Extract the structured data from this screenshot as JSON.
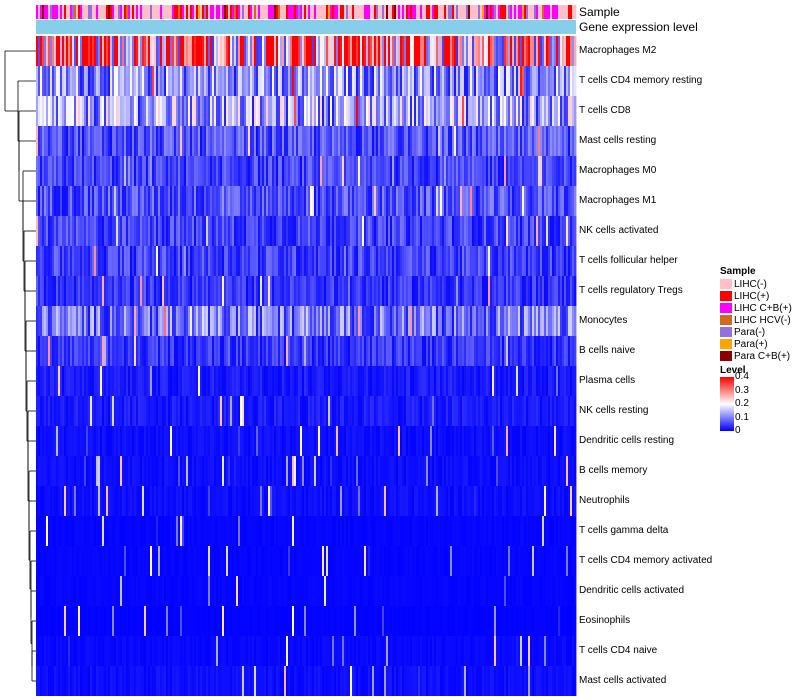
{
  "chart_data": {
    "type": "heatmap",
    "annotations": {
      "sample_track_label": "Sample",
      "expression_track_label": "Gene expression level"
    },
    "rows": [
      {
        "name": "Macrophages M2",
        "mean": 0.28
      },
      {
        "name": "T cells CD4 memory resting",
        "mean": 0.11
      },
      {
        "name": "T cells CD8",
        "mean": 0.13
      },
      {
        "name": "Mast cells resting",
        "mean": 0.06
      },
      {
        "name": "Macrophages M0",
        "mean": 0.05
      },
      {
        "name": "Macrophages M1",
        "mean": 0.06
      },
      {
        "name": "NK cells activated",
        "mean": 0.05
      },
      {
        "name": "T cells follicular helper",
        "mean": 0.05
      },
      {
        "name": "T cells regulatory  Tregs",
        "mean": 0.04
      },
      {
        "name": "Monocytes",
        "mean": 0.09
      },
      {
        "name": "B cells naive",
        "mean": 0.04
      },
      {
        "name": "Plasma cells",
        "mean": 0.02
      },
      {
        "name": "NK cells resting",
        "mean": 0.02
      },
      {
        "name": "Dendritic cells resting",
        "mean": 0.01
      },
      {
        "name": "B cells memory",
        "mean": 0.01
      },
      {
        "name": "Neutrophils",
        "mean": 0.01
      },
      {
        "name": "T cells gamma delta",
        "mean": 0.004
      },
      {
        "name": "T cells CD4 memory activated",
        "mean": 0.004
      },
      {
        "name": "Dendritic cells activated",
        "mean": 0.004
      },
      {
        "name": "Eosinophils",
        "mean": 0.002
      },
      {
        "name": "T cells CD4 naive",
        "mean": 0.006
      },
      {
        "name": "Mast cells activated",
        "mean": 0.01
      }
    ],
    "value_range": [
      0,
      0.4
    ],
    "sample_legend": {
      "title": "Sample",
      "items": [
        {
          "label": "LIHC(-)",
          "color": "#ffc0cb"
        },
        {
          "label": "LIHC(+)",
          "color": "#ff0000"
        },
        {
          "label": "LIHC C+B(+)",
          "color": "#ff00ff"
        },
        {
          "label": "LIHC HCV(-)",
          "color": "#d2691e"
        },
        {
          "label": "Para(-)",
          "color": "#9370db"
        },
        {
          "label": "Para(+)",
          "color": "#ffa500"
        },
        {
          "label": "Para C+B(+)",
          "color": "#8b0000"
        }
      ]
    },
    "level_legend": {
      "title": "Level",
      "ticks": [
        "0.4",
        "0.3",
        "0.2",
        "0.1",
        "0"
      ],
      "colors": [
        "#0000ff",
        "#ffffff",
        "#ff0000"
      ]
    },
    "expression_track_color": "#87ceeb"
  }
}
